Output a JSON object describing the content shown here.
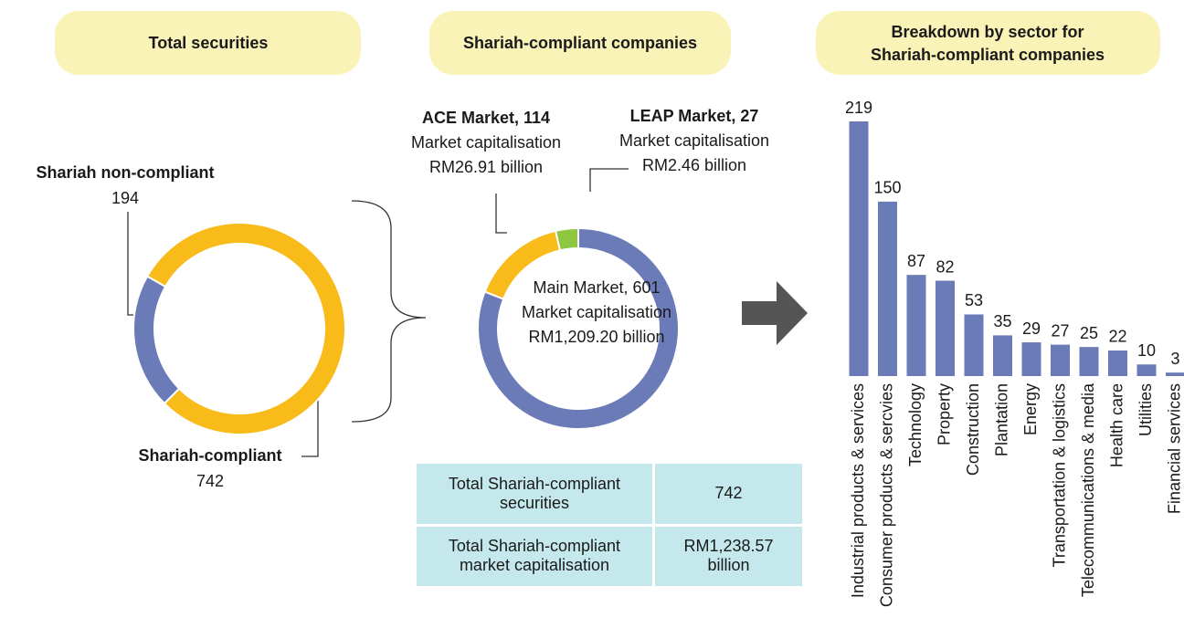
{
  "chart_data": [
    {
      "type": "pie",
      "title": "Total securities",
      "categories": [
        "Shariah non-compliant",
        "Shariah-compliant"
      ],
      "values": [
        194,
        742
      ],
      "colors": [
        "#6b7bb8",
        "#f8bb1a"
      ]
    },
    {
      "type": "pie",
      "title": "Shariah-compliant companies",
      "categories": [
        "Main Market",
        "ACE Market",
        "LEAP Market"
      ],
      "values": [
        601,
        114,
        27
      ],
      "value_labels": [
        "Main Market, 601",
        "ACE Market, 114",
        "LEAP Market, 27"
      ],
      "annotations": [
        [
          "Market capitalisation",
          "RM1,209.20 billion"
        ],
        [
          "Market capitalisation",
          "RM26.91 billion"
        ],
        [
          "Market capitalisation",
          "RM2.46 billion"
        ]
      ],
      "colors": [
        "#6b7bb8",
        "#f8bb1a",
        "#8dc63f"
      ]
    },
    {
      "type": "bar",
      "title": [
        "Breakdown by sector for",
        "Shariah-compliant companies"
      ],
      "categories": [
        "Industrial products & services",
        "Consumer products & sercvies",
        "Technology",
        "Property",
        "Construction",
        "Plantation",
        "Energy",
        "Transportation & logistics",
        "Telecommunications & media",
        "Health care",
        "Utilities",
        "Financial services"
      ],
      "values": [
        219,
        150,
        87,
        82,
        53,
        35,
        29,
        27,
        25,
        22,
        10,
        3
      ],
      "color": "#6b7bb8"
    }
  ],
  "table": {
    "rows": [
      [
        "Total Shariah-compliant securities",
        "742"
      ],
      [
        "Total Shariah-compliant market capitalisation",
        "RM1,238.57 billion"
      ]
    ]
  }
}
